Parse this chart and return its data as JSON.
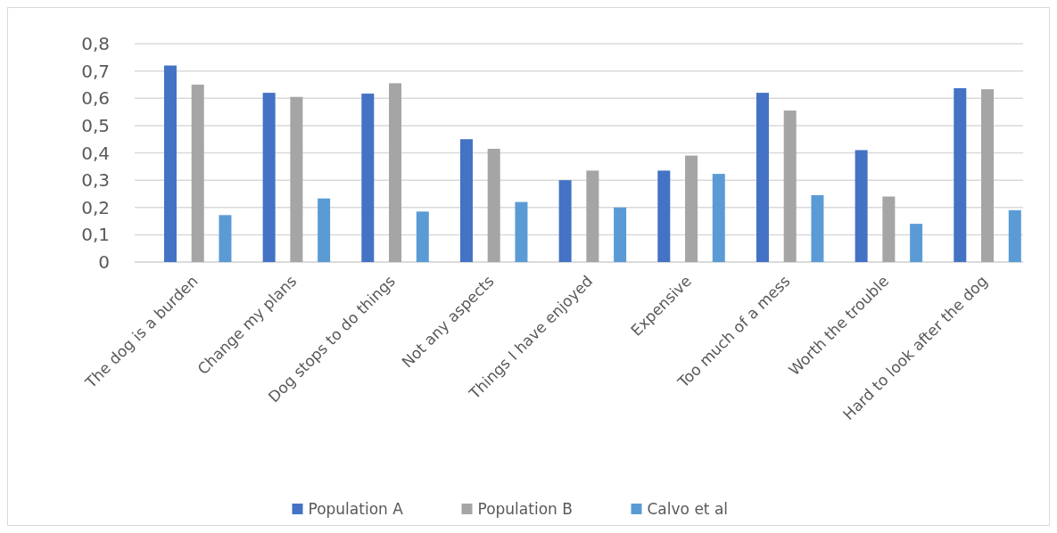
{
  "chart_data": {
    "type": "bar",
    "categories": [
      "The dog is a burden",
      "Change my plans",
      "Dog stops to do things",
      "Not any aspects",
      "Things I have enjoyed",
      "Expensive",
      "Too much of a mess",
      "Worth the trouble",
      "Hard to look after the dog"
    ],
    "series": [
      {
        "name": "Population A",
        "color": "#4472c4",
        "values": [
          0.72,
          0.62,
          0.617,
          0.45,
          0.3,
          0.335,
          0.62,
          0.41,
          0.637
        ]
      },
      {
        "name": "Population B",
        "color": "#a5a5a5",
        "values": [
          0.65,
          0.605,
          0.655,
          0.415,
          0.335,
          0.39,
          0.555,
          0.24,
          0.633
        ]
      },
      {
        "name": "Calvo et al",
        "color": "#5b9bd5",
        "values": [
          0.172,
          0.233,
          0.185,
          0.22,
          0.2,
          0.323,
          0.245,
          0.14,
          0.19
        ]
      }
    ],
    "ylim": [
      0,
      0.8
    ],
    "yticks": [
      {
        "value": 0,
        "label": "0"
      },
      {
        "value": 0.1,
        "label": "0,1"
      },
      {
        "value": 0.2,
        "label": "0,2"
      },
      {
        "value": 0.3,
        "label": "0,3"
      },
      {
        "value": 0.4,
        "label": "0,4"
      },
      {
        "value": 0.5,
        "label": "0,5"
      },
      {
        "value": 0.6,
        "label": "0,6"
      },
      {
        "value": 0.7,
        "label": "0,7"
      },
      {
        "value": 0.8,
        "label": "0,8"
      }
    ],
    "grid": "y",
    "legend": "bottom"
  }
}
